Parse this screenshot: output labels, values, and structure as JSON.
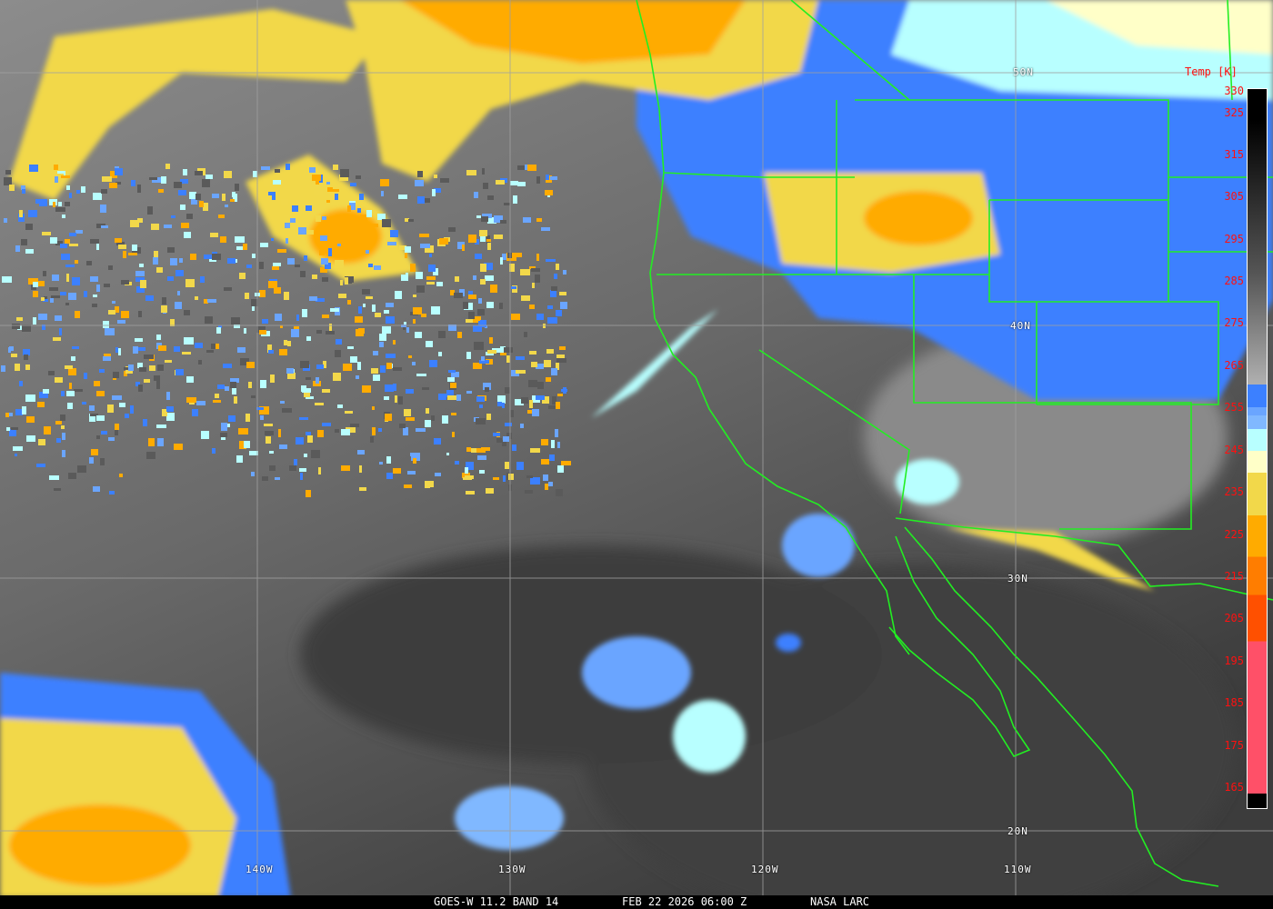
{
  "caption": {
    "satellite": "GOES-W 11.2 BAND 14",
    "datetime": "FEB 22 2026 06:00 Z",
    "source": "NASA LARC"
  },
  "colorbar": {
    "title": "Temp [K]",
    "ticks": [
      "330",
      "325",
      "315",
      "305",
      "295",
      "285",
      "275",
      "265",
      "255",
      "245",
      "235",
      "225",
      "215",
      "205",
      "195",
      "185",
      "175",
      "165"
    ],
    "colors": {
      "warm_gradient_top": "#000000",
      "warm_gradient_bottom": "#b0b0b0",
      "blue": "#3c80ff",
      "mid_blue": "#6aa5ff",
      "light_blue": "#80b8ff",
      "cyan": "#b8ffff",
      "cream": "#ffffc8",
      "yellow": "#f2d84a",
      "orange": "#ffab00",
      "dark_orange": "#ff7d00",
      "red_orange": "#ff5000",
      "pink": "#ff5068"
    }
  },
  "grid": {
    "lat_labels": [
      "50N",
      "40N",
      "30N",
      "20N"
    ],
    "lon_labels": [
      "140W",
      "130W",
      "120W",
      "110W"
    ]
  },
  "map_colors": {
    "coastline": "#22ee22",
    "grid": "#a0a0a0"
  }
}
